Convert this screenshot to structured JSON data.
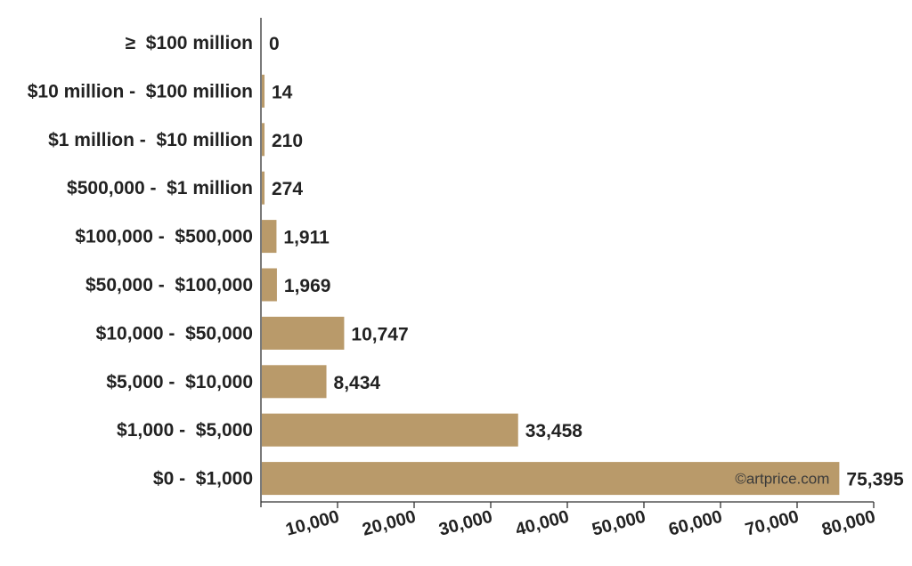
{
  "chart_data": {
    "type": "bar",
    "orientation": "horizontal",
    "categories": [
      "≥  $100 million",
      "$10 million -  $100 million",
      "$1 million -  $10 million",
      "$500,000 -  $1 million",
      "$100,000 -  $500,000",
      "$50,000 -  $100,000",
      "$10,000 -  $50,000",
      "$5,000 -  $10,000",
      "$1,000 -  $5,000",
      "$0 -  $1,000"
    ],
    "values": [
      0,
      14,
      210,
      274,
      1911,
      1969,
      10747,
      8434,
      33458,
      75395
    ],
    "value_labels": [
      "0",
      "14",
      "210",
      "274",
      "1,911",
      "1,969",
      "10,747",
      "8,434",
      "33,458",
      "75,395"
    ],
    "xlim": [
      0,
      80000
    ],
    "x_ticks": [
      10000,
      20000,
      30000,
      40000,
      50000,
      60000,
      70000,
      80000
    ],
    "x_tick_labels": [
      "10,000",
      "20,000",
      "30,000",
      "40,000",
      "50,000",
      "60,000",
      "70,000",
      "80,000"
    ],
    "bar_color": "#b99a6a",
    "grid": false,
    "legend": "none"
  },
  "watermark": "©artprice.com"
}
